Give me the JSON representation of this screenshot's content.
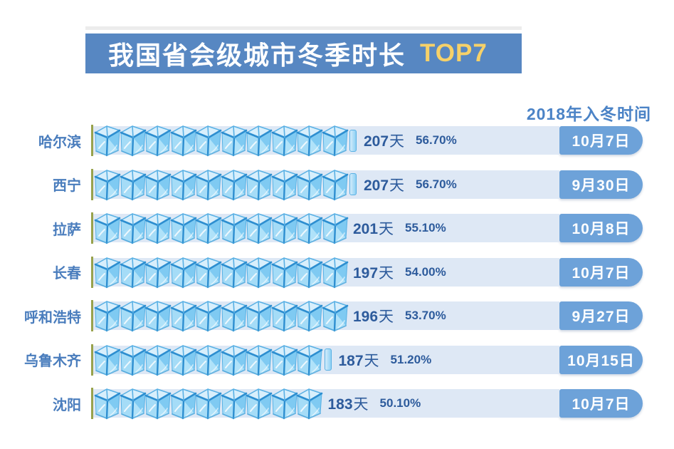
{
  "title": {
    "main": "我国省会级城市冬季时长",
    "highlight": "TOP7"
  },
  "column_header": "2018年入冬时间",
  "colors": {
    "banner_blue": "#5787c2",
    "highlight_yellow": "#f6d169",
    "column_header_text": "#4b83c6",
    "city_label_text": "#4a7dbd",
    "value_text": "#2d5b9c",
    "row_strip": "#dee8f5",
    "date_badge_blue": "#6da2d9",
    "axis_line_olive": "#98a24c",
    "ice_cube_blue": "#7fcaf2"
  },
  "chart_data": {
    "type": "bar",
    "style": "pictogram",
    "icon": "ice-cube",
    "title": "我国省会级城市冬季时长 TOP7",
    "value_column_header": "2018年入冬时间",
    "unit": "天",
    "rows": [
      {
        "city": "哈尔滨",
        "days": "207",
        "percent": "56.70%",
        "winter_start_date": "10月7日",
        "cubes": 10,
        "partial_cube": true
      },
      {
        "city": "西宁",
        "days": "207",
        "percent": "56.70%",
        "winter_start_date": "9月30日",
        "cubes": 10,
        "partial_cube": true
      },
      {
        "city": "拉萨",
        "days": "201",
        "percent": "55.10%",
        "winter_start_date": "10月8日",
        "cubes": 10,
        "partial_cube": false
      },
      {
        "city": "长春",
        "days": "197",
        "percent": "54.00%",
        "winter_start_date": "10月7日",
        "cubes": 10,
        "partial_cube": false
      },
      {
        "city": "呼和浩特",
        "days": "196",
        "percent": "53.70%",
        "winter_start_date": "9月27日",
        "cubes": 10,
        "partial_cube": false
      },
      {
        "city": "乌鲁木齐",
        "days": "187",
        "percent": "51.20%",
        "winter_start_date": "10月15日",
        "cubes": 9,
        "partial_cube": true
      },
      {
        "city": "沈阳",
        "days": "183",
        "percent": "50.10%",
        "winter_start_date": "10月7日",
        "cubes": 9,
        "partial_cube": false
      }
    ]
  }
}
